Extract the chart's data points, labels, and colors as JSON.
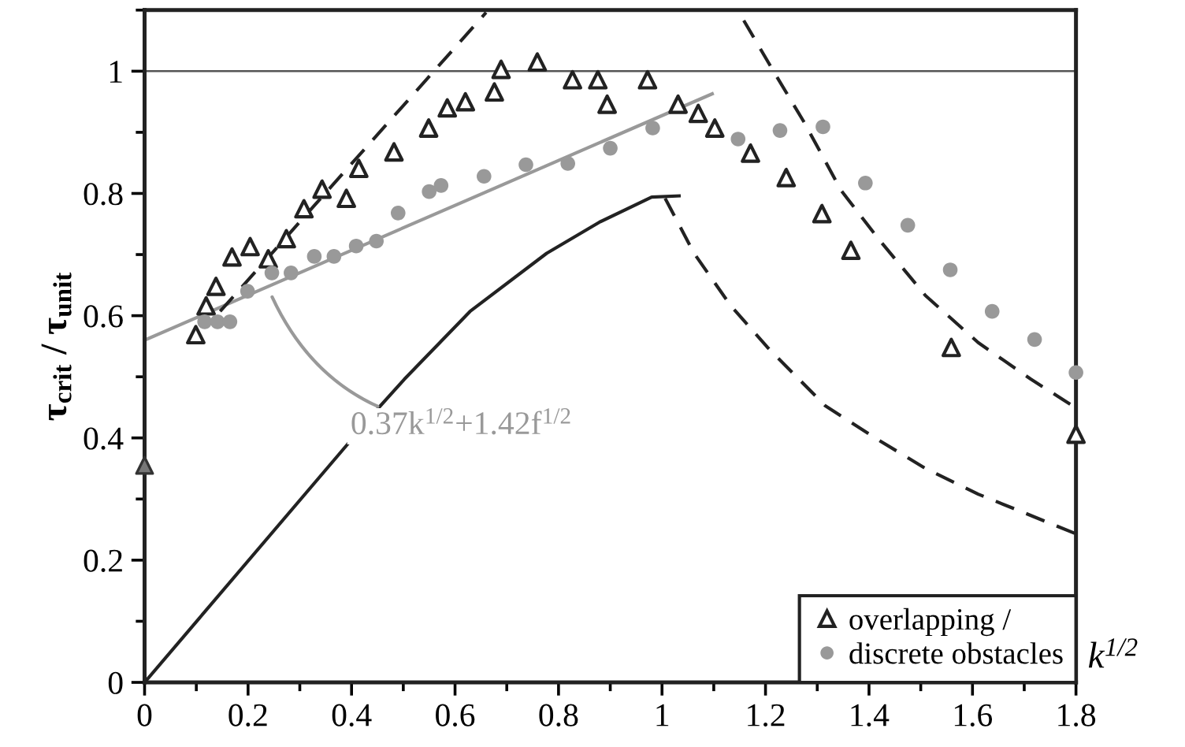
{
  "chart_data": {
    "type": "scatter",
    "xlabel": "k$^{1/2}$",
    "ylabel": "τ$_{crit}$ / τ$_{unit}$",
    "xlim": [
      0,
      1.8
    ],
    "ylim": [
      0,
      1.1
    ],
    "xticks": [
      0,
      0.2,
      0.4,
      0.6,
      0.8,
      1,
      1.2,
      1.4,
      1.6,
      1.8
    ],
    "yticks": [
      0,
      0.2,
      0.4,
      0.6,
      0.8,
      1
    ],
    "grid": false,
    "legend": "bottom right",
    "ref_lines": [
      {
        "axis": "y",
        "value": 1,
        "color": "#555555"
      }
    ],
    "annotations": [
      {
        "text": "0.37k$^{1/2}$+1.42f$^{1/2}$",
        "x": 0.243,
        "y": 0.637
      }
    ],
    "series": [
      {
        "type": "line",
        "color": "#999999",
        "line_style": "solid",
        "marker": "none",
        "x": [
          0,
          1.097
        ],
        "values": [
          0.56,
          0.963
        ]
      },
      {
        "type": "line",
        "color": "#222222",
        "line_style": "solid",
        "marker": "none",
        "x": [
          0,
          0.452,
          0.502,
          0.629,
          0.777,
          0.879,
          0.98,
          1.033
        ],
        "values": [
          0,
          0.449,
          0.496,
          0.607,
          0.702,
          0.753,
          0.794,
          0.796
        ]
      },
      {
        "type": "line",
        "color": "#222222",
        "line_style": "dashed",
        "marker": "none",
        "x": [
          0.146,
          0.66
        ],
        "values": [
          0.607,
          1.096
        ]
      },
      {
        "type": "line",
        "color": "#222222",
        "line_style": "dashed",
        "marker": "none",
        "x": [
          1.006,
          1.062,
          1.133,
          1.204,
          1.315,
          1.408,
          1.509,
          1.611,
          1.713,
          1.8
        ],
        "values": [
          0.792,
          0.702,
          0.616,
          0.548,
          0.453,
          0.402,
          0.35,
          0.308,
          0.273,
          0.243
        ]
      },
      {
        "type": "line",
        "color": "#222222",
        "line_style": "dashed",
        "marker": "none",
        "x": [
          1.158,
          1.214,
          1.275,
          1.346,
          1.417,
          1.509,
          1.611,
          1.713,
          1.8
        ],
        "values": [
          1.083,
          1.002,
          0.916,
          0.805,
          0.727,
          0.633,
          0.556,
          0.496,
          0.449
        ]
      },
      {
        "name": "overlapping /",
        "color": "#222222",
        "marker": "triangle",
        "x": [
          0.099,
          0.119,
          0.138,
          0.169,
          0.204,
          0.239,
          0.274,
          0.308,
          0.343,
          0.39,
          0.414,
          0.482,
          0.549,
          0.585,
          0.62,
          0.676,
          0.689,
          0.759,
          0.827,
          0.876,
          0.894,
          0.972,
          1.031,
          1.07,
          1.102,
          1.171,
          1.24,
          1.309,
          1.365,
          1.559,
          1.8
        ],
        "values": [
          0.569,
          0.616,
          0.648,
          0.696,
          0.713,
          0.693,
          0.726,
          0.775,
          0.807,
          0.792,
          0.841,
          0.868,
          0.907,
          0.94,
          0.95,
          0.966,
          1.003,
          1.015,
          0.986,
          0.986,
          0.946,
          0.986,
          0.946,
          0.931,
          0.907,
          0.866,
          0.826,
          0.767,
          0.707,
          0.548,
          0.406
        ]
      },
      {
        "name": "discrete obstacles",
        "color": "#999999",
        "marker": "circle",
        "x": [
          0.116,
          0.141,
          0.165,
          0.199,
          0.246,
          0.283,
          0.328,
          0.366,
          0.409,
          0.448,
          0.49,
          0.55,
          0.573,
          0.656,
          0.737,
          0.818,
          0.9,
          0.982,
          1.147,
          1.228,
          1.311,
          1.393,
          1.475,
          1.557,
          1.638,
          1.72,
          1.8
        ],
        "values": [
          0.59,
          0.59,
          0.59,
          0.64,
          0.67,
          0.67,
          0.697,
          0.697,
          0.714,
          0.722,
          0.768,
          0.803,
          0.813,
          0.828,
          0.847,
          0.849,
          0.874,
          0.907,
          0.889,
          0.903,
          0.909,
          0.817,
          0.748,
          0.675,
          0.607,
          0.561,
          0.507
        ]
      },
      {
        "color": "#777777",
        "marker": "triangle",
        "x": [
          0
        ],
        "values": [
          0.355
        ]
      }
    ]
  }
}
